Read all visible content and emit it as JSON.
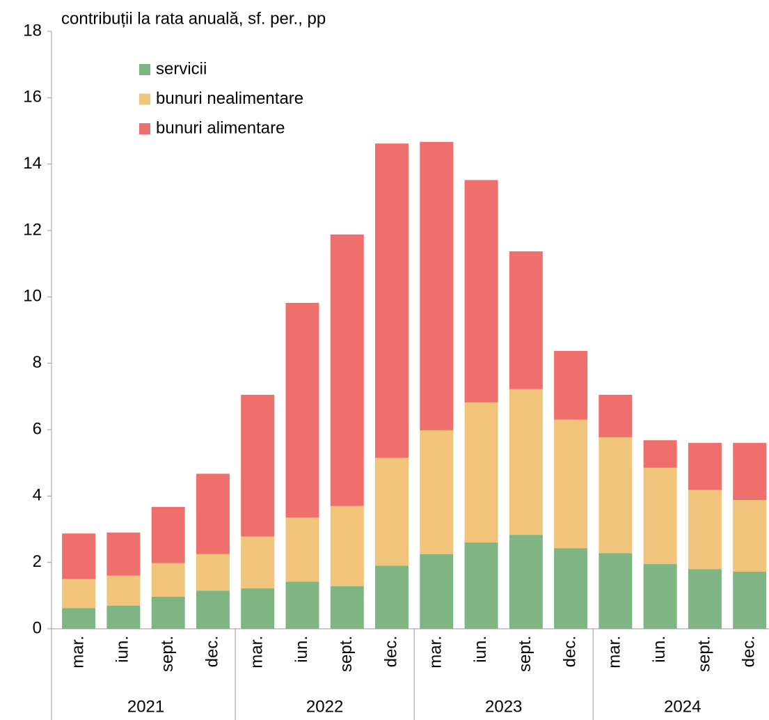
{
  "chart_data": {
    "type": "stacked_bar",
    "title": "contribuții la rata anuală, sf. per., pp",
    "categories": [
      "mar.",
      "iun.",
      "sept.",
      "dec.",
      "mar.",
      "iun.",
      "sept.",
      "dec.",
      "mar.",
      "iun.",
      "sept.",
      "dec.",
      "mar.",
      "iun.",
      "sept.",
      "dec."
    ],
    "groups": [
      "2021",
      "2022",
      "2023",
      "2024"
    ],
    "series": [
      {
        "name": "servicii",
        "color": "#7fb582",
        "values": [
          0.62,
          0.7,
          0.97,
          1.15,
          1.22,
          1.42,
          1.28,
          1.9,
          2.25,
          2.6,
          2.83,
          2.43,
          2.28,
          1.95,
          1.8,
          1.72
        ]
      },
      {
        "name": "bunuri nealimentare",
        "color": "#f0c47a",
        "values": [
          0.88,
          0.9,
          1.01,
          1.1,
          1.56,
          1.93,
          2.42,
          3.25,
          3.73,
          4.22,
          4.39,
          3.87,
          3.49,
          2.9,
          2.38,
          2.16
        ]
      },
      {
        "name": "bunuri alimentare",
        "color": "#ef6f6c",
        "values": [
          1.37,
          1.3,
          1.69,
          2.42,
          4.27,
          6.47,
          8.18,
          9.47,
          8.69,
          6.7,
          4.15,
          2.07,
          1.28,
          0.83,
          1.42,
          1.72
        ]
      }
    ],
    "ylim": [
      0,
      18
    ],
    "yticks": [
      0,
      2,
      4,
      6,
      8,
      10,
      12,
      14,
      16,
      18
    ],
    "grid": false,
    "legend": "top-left"
  }
}
